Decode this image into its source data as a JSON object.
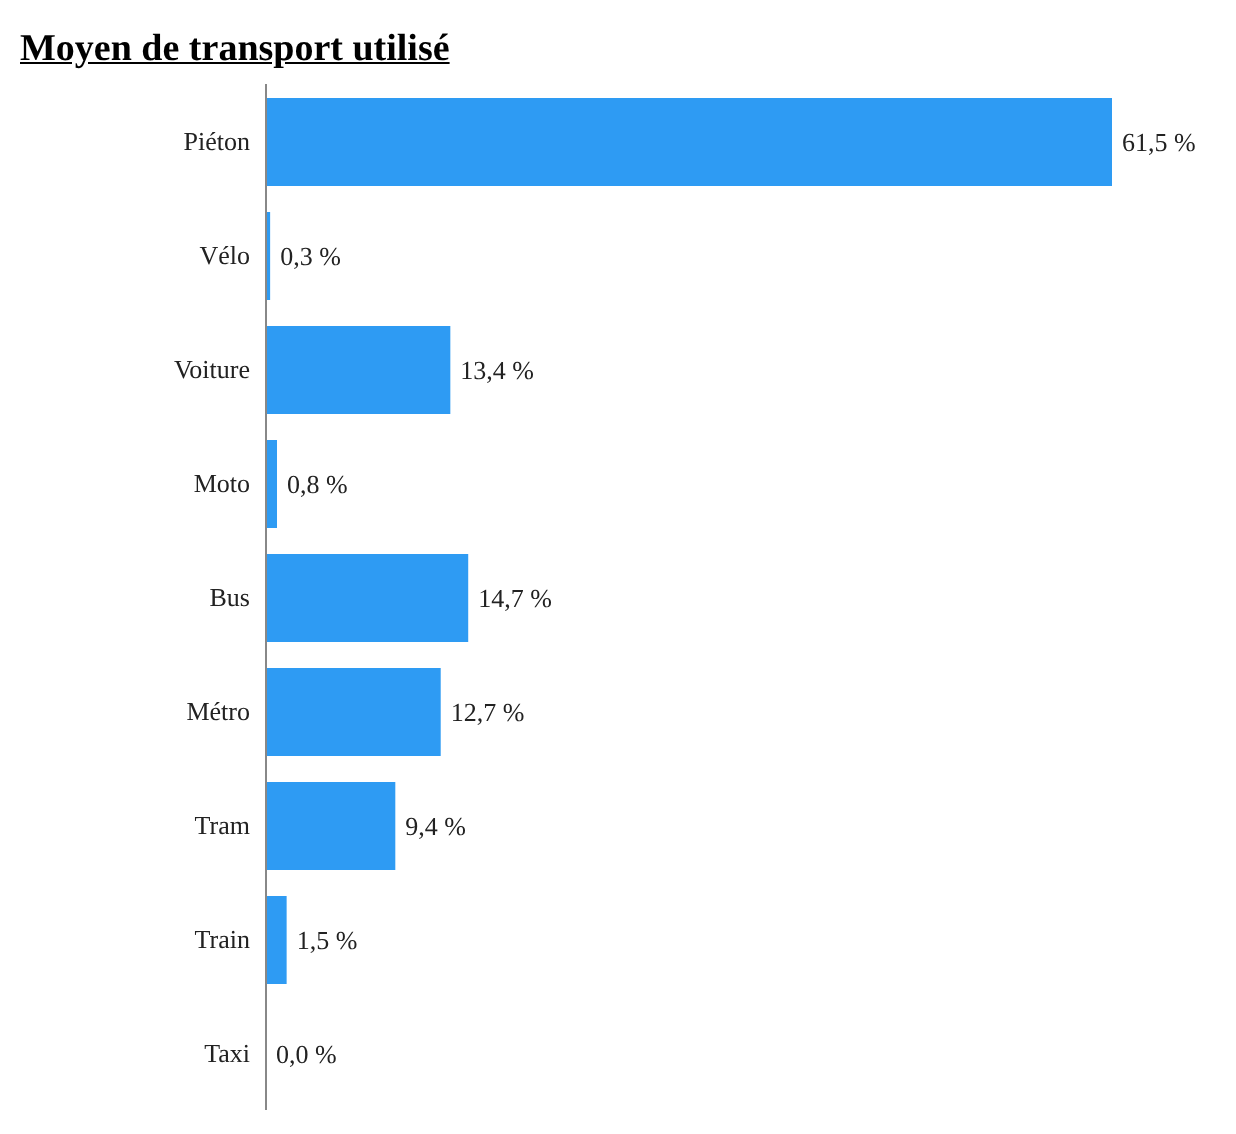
{
  "chart_data": {
    "type": "bar",
    "orientation": "horizontal",
    "title": "Moyen de transport utilisé",
    "categories": [
      "Piéton",
      "Vélo",
      "Voiture",
      "Moto",
      "Bus",
      "Métro",
      "Tram",
      "Train",
      "Taxi"
    ],
    "values": [
      61.5,
      0.3,
      13.4,
      0.8,
      14.7,
      12.7,
      9.4,
      1.5,
      0.0
    ],
    "value_labels": [
      "61,5 %",
      "0,3 %",
      "13,4 %",
      "0,8 %",
      "14,7 %",
      "12,7 %",
      "9,4 %",
      "1,5 %",
      "0,0 %"
    ],
    "color": "#2e9bf3",
    "grid": false,
    "legend": false
  }
}
